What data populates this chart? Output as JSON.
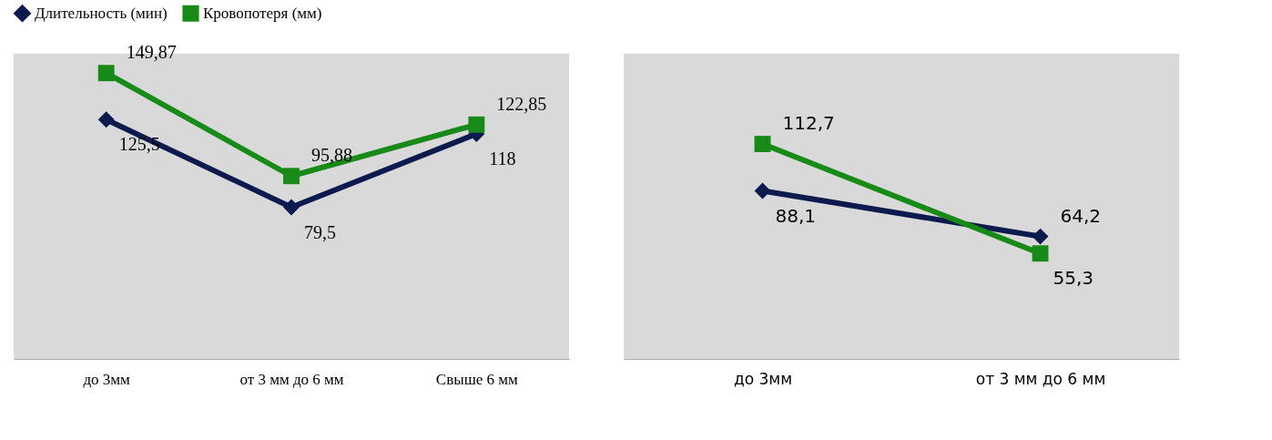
{
  "chart_data": [
    {
      "type": "line",
      "categories": [
        "до 3мм",
        "от 3 мм до 6 мм",
        "Свыше 6 мм"
      ],
      "ylim": [
        0,
        160
      ],
      "tick_labels": "x",
      "legend": "top",
      "marker": "diamond",
      "line_style": "solid",
      "series": [
        {
          "name": "Длительность (мин)",
          "color": "#0c1a4e",
          "marker": "diamond",
          "values": [
            125.5,
            79.5,
            118
          ],
          "value_labels": [
            "125,5",
            "79,5",
            "118"
          ]
        },
        {
          "name": "Кровопотеря (мм)",
          "color": "#178a17",
          "marker": "square",
          "values": [
            149.87,
            95.88,
            122.85
          ],
          "value_labels": [
            "149,87",
            "95,88",
            "122,85"
          ]
        }
      ]
    },
    {
      "type": "line",
      "categories": [
        "до 3мм",
        "от 3 мм до 6 мм"
      ],
      "ylim": [
        0,
        160
      ],
      "tick_labels": "x",
      "legend": "top",
      "marker": "diamond",
      "line_style": "solid",
      "series": [
        {
          "name": "Длительность (мин)",
          "color": "#0c1a4e",
          "marker": "diamond",
          "values": [
            88.1,
            64.2
          ],
          "value_labels": [
            "88,1",
            "64,2"
          ]
        },
        {
          "name": "Кровопотеря (мм)",
          "color": "#178a17",
          "marker": "square",
          "values": [
            112.7,
            55.3
          ],
          "value_labels": [
            "112,7",
            "55,3"
          ]
        }
      ]
    }
  ]
}
